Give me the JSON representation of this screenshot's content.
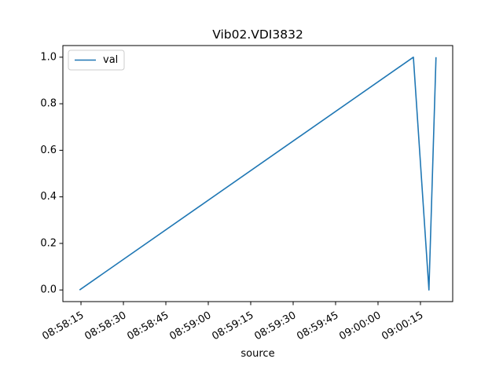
{
  "chart_data": {
    "type": "line",
    "title": "Vib02.VDI3832",
    "xlabel": "source",
    "ylabel": "",
    "x": [
      "08:58:14.5",
      "09:00:12.5",
      "09:00:18.0",
      "09:00:20.5"
    ],
    "series": [
      {
        "name": "val",
        "values": [
          0.0,
          1.0,
          0.0,
          1.0
        ],
        "color": "#1f77b4"
      }
    ],
    "xticks": [
      "08:58:15",
      "08:58:30",
      "08:58:45",
      "08:59:00",
      "08:59:15",
      "08:59:30",
      "08:59:45",
      "09:00:00",
      "09:00:15"
    ],
    "yticks": [
      "0.0",
      "0.2",
      "0.4",
      "0.6",
      "0.8",
      "1.0"
    ],
    "xlim": [
      "08:58:08.6",
      "09:00:26.4"
    ],
    "ylim": [
      -0.05,
      1.05
    ],
    "grid": false,
    "legend": "upper left"
  }
}
